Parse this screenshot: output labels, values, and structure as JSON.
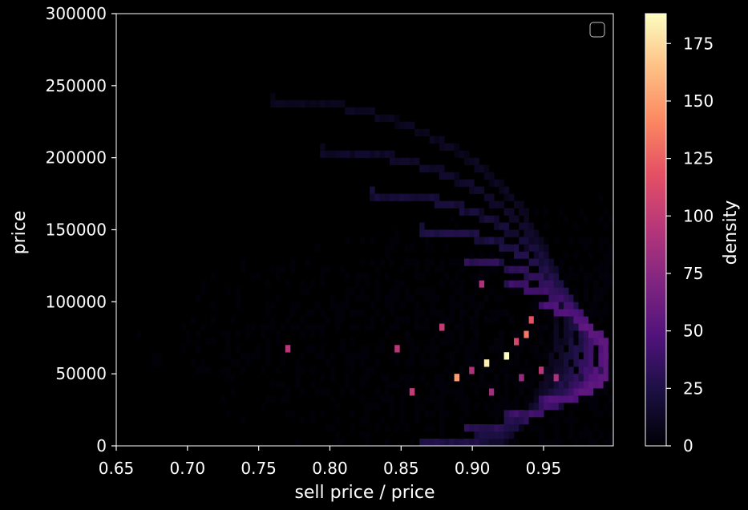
{
  "chart_data": {
    "type": "heatmap",
    "title": "",
    "xlabel": "sell price / price",
    "ylabel": "price",
    "xlim": [
      0.65,
      0.999
    ],
    "ylim": [
      0,
      300000
    ],
    "x_ticks": [
      "0.65",
      "0.70",
      "0.75",
      "0.80",
      "0.85",
      "0.90",
      "0.95"
    ],
    "y_ticks": [
      "0",
      "50000",
      "100000",
      "150000",
      "200000",
      "250000",
      "300000"
    ],
    "bins": {
      "x": 100,
      "y": 60
    },
    "colorbar": {
      "label": "density",
      "range": [
        0,
        188
      ],
      "ticks": [
        "0",
        "25",
        "50",
        "75",
        "100",
        "125",
        "150",
        "175"
      ],
      "colormap": "magma"
    },
    "legend": {
      "placement": "top-right",
      "entries": []
    },
    "grid": false,
    "hotspots": [
      {
        "x": 0.924,
        "y": 64000,
        "value": 188
      },
      {
        "x": 0.91,
        "y": 56000,
        "value": 182
      },
      {
        "x": 0.89,
        "y": 47000,
        "value": 150
      },
      {
        "x": 0.938,
        "y": 79000,
        "value": 135
      },
      {
        "x": 0.942,
        "y": 86000,
        "value": 118
      },
      {
        "x": 0.858,
        "y": 35000,
        "value": 100
      },
      {
        "x": 0.77,
        "y": 65000,
        "value": 95
      },
      {
        "x": 0.846,
        "y": 65000,
        "value": 95
      },
      {
        "x": 0.88,
        "y": 80000,
        "value": 100
      },
      {
        "x": 0.905,
        "y": 110000,
        "value": 90
      },
      {
        "x": 0.93,
        "y": 71000,
        "value": 110
      },
      {
        "x": 0.948,
        "y": 50000,
        "value": 95
      },
      {
        "x": 0.96,
        "y": 47000,
        "value": 90
      },
      {
        "x": 0.914,
        "y": 36000,
        "value": 85
      },
      {
        "x": 0.935,
        "y": 45000,
        "value": 80
      },
      {
        "x": 0.9,
        "y": 52000,
        "value": 90
      }
    ],
    "arcs": [
      {
        "x_end": 0.995,
        "y_center": 60000,
        "radius_x": 0.02,
        "radius_y": 22000,
        "value": 55
      },
      {
        "x_end": 0.99,
        "y_center": 63000,
        "radius_x": 0.04,
        "radius_y": 33000,
        "value": 50
      },
      {
        "x_end": 0.985,
        "y_center": 66000,
        "radius_x": 0.06,
        "radius_y": 45000,
        "value": 42
      },
      {
        "x_end": 0.98,
        "y_center": 70000,
        "radius_x": 0.085,
        "radius_y": 58000,
        "value": 35
      },
      {
        "x_end": 0.975,
        "y_center": 75000,
        "radius_x": 0.11,
        "radius_y": 75000,
        "value": 28
      },
      {
        "x_end": 0.97,
        "y_center": 80000,
        "radius_x": 0.14,
        "radius_y": 95000,
        "value": 22
      },
      {
        "x_end": 0.965,
        "y_center": 85000,
        "radius_x": 0.17,
        "radius_y": 120000,
        "value": 16
      },
      {
        "x_end": 0.96,
        "y_center": 90000,
        "radius_x": 0.2,
        "radius_y": 150000,
        "value": 12
      }
    ],
    "background_density": 3
  }
}
